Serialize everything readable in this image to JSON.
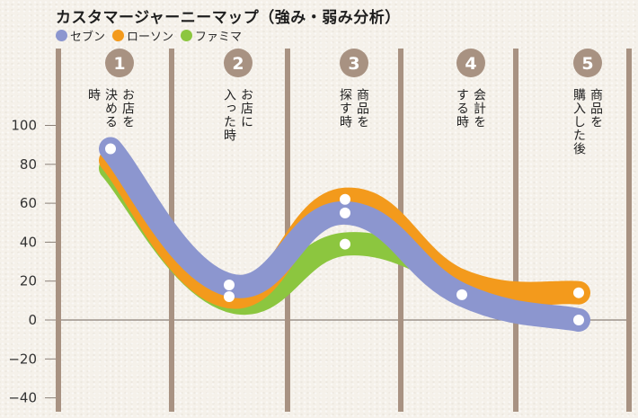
{
  "title": "カスタマージャーニーマップ（強み・弱み分析）",
  "legend": [
    {
      "label": "セブン",
      "color": "#8c96cf"
    },
    {
      "label": "ローソン",
      "color": "#f39a1c"
    },
    {
      "label": "ファミマ",
      "color": "#8cc63f"
    }
  ],
  "colors": {
    "divider": "#a89282",
    "axis_line": "#8a8078",
    "stage_circle": "#a89282",
    "point_fill": "#ffffff"
  },
  "chart_data": {
    "type": "line",
    "title": "カスタマージャーニーマップ（強み・弱み分析）",
    "xlabel": "",
    "ylabel": "",
    "ylim": [
      -40,
      100
    ],
    "yticks": [
      100,
      80,
      60,
      40,
      20,
      0,
      -20,
      -40
    ],
    "ytick_labels": [
      "100",
      "80",
      "60",
      "40",
      "20",
      "0",
      "−20",
      "−40"
    ],
    "grid": false,
    "legend_position": "top-left",
    "categories": [
      {
        "num": "1",
        "lines": [
          "お店を",
          "決める",
          "時"
        ]
      },
      {
        "num": "2",
        "lines": [
          "お店に",
          "入った時"
        ]
      },
      {
        "num": "3",
        "lines": [
          "商品を",
          "探す時"
        ]
      },
      {
        "num": "4",
        "lines": [
          "会計を",
          "する時"
        ]
      },
      {
        "num": "5",
        "lines": [
          "商品を",
          "購入した後"
        ]
      }
    ],
    "series": [
      {
        "name": "ファミマ",
        "color": "#8cc63f",
        "values": [
          78,
          10,
          39,
          20,
          null
        ],
        "markers": [
          false,
          false,
          true,
          false,
          false
        ]
      },
      {
        "name": "ローソン",
        "color": "#f39a1c",
        "values": [
          82,
          12,
          62,
          20,
          14
        ],
        "markers": [
          false,
          true,
          true,
          false,
          true
        ]
      },
      {
        "name": "セブン",
        "color": "#8c96cf",
        "values": [
          88,
          18,
          55,
          13,
          0
        ],
        "markers": [
          true,
          true,
          true,
          true,
          true
        ]
      }
    ]
  }
}
